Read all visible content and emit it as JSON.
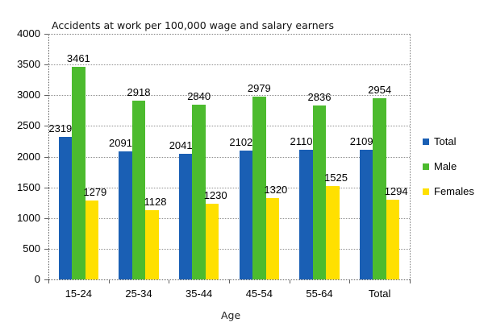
{
  "chart_data": {
    "type": "bar",
    "title": "Accidents at work per 100,000 wage and salary earners",
    "xlabel": "Age",
    "ylabel": "",
    "ylim": [
      0,
      4000
    ],
    "yticks": [
      0,
      500,
      1000,
      1500,
      2000,
      2500,
      3000,
      3500,
      4000
    ],
    "grid": true,
    "legend_position": "right",
    "categories": [
      "15-24",
      "25-34",
      "35-44",
      "45-54",
      "55-64",
      "Total"
    ],
    "series": [
      {
        "name": "Total",
        "color": "#1a5fb4",
        "values": [
          2319,
          2091,
          2041,
          2102,
          2110,
          2109
        ]
      },
      {
        "name": "Male",
        "color": "#4cbb2e",
        "values": [
          3461,
          2918,
          2840,
          2979,
          2836,
          2954
        ]
      },
      {
        "name": "Females",
        "color": "#ffe000",
        "values": [
          1279,
          1128,
          1230,
          1320,
          1525,
          1294
        ]
      }
    ]
  }
}
